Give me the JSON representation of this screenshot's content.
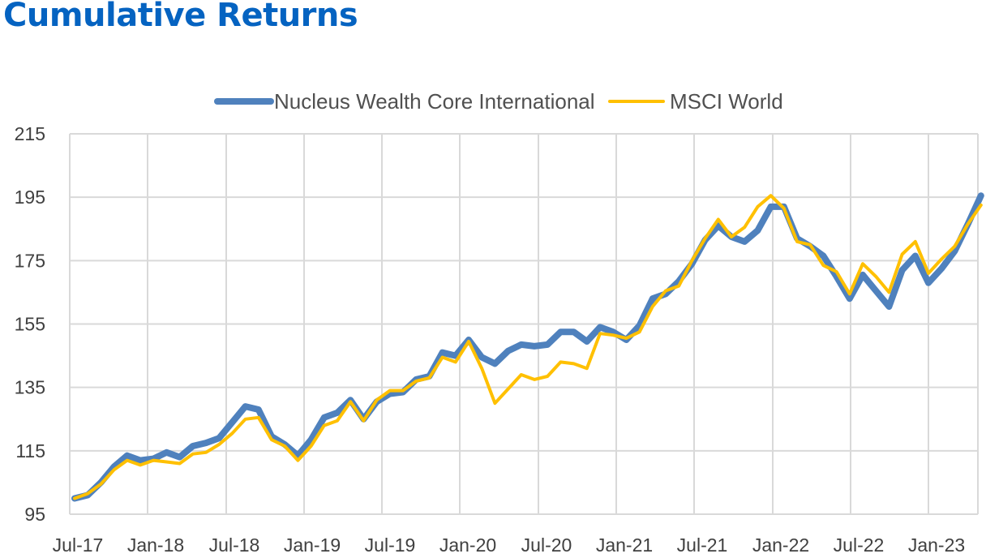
{
  "page": {
    "title": "Cumulative Returns"
  },
  "chart_data": {
    "type": "line",
    "title": "",
    "xlabel": "",
    "ylabel": "",
    "ylim": [
      95,
      215
    ],
    "yticks": [
      95,
      115,
      135,
      155,
      175,
      195,
      215
    ],
    "x_tick_labels": [
      "Jul-17",
      "Jan-18",
      "Jul-18",
      "Jan-19",
      "Jul-19",
      "Jan-20",
      "Jul-20",
      "Jan-21",
      "Jul-21",
      "Jan-22",
      "Jul-22",
      "Jan-23"
    ],
    "grid": true,
    "legend_position": "top-center",
    "series": [
      {
        "name": "Nucleus Wealth Core International",
        "color": "#4F81BD",
        "values": [
          100,
          101,
          105,
          110,
          113.5,
          112,
          112.5,
          114.5,
          113,
          116.5,
          117.5,
          119,
          124,
          129,
          128,
          119.5,
          117,
          113.5,
          118.5,
          125.5,
          127,
          131,
          125,
          130.5,
          133,
          133.5,
          137.5,
          138.5,
          146,
          145,
          150,
          144.5,
          142.5,
          146.5,
          148.5,
          148,
          148.5,
          152.5,
          152.5,
          149.5,
          154,
          152.5,
          150,
          154.5,
          163,
          164.5,
          168.5,
          174,
          181.5,
          186,
          182.5,
          181,
          184.5,
          192,
          192,
          182,
          179.5,
          176.5,
          170,
          163,
          170.5,
          165.5,
          160.5,
          172,
          176.5,
          168,
          172.5,
          178,
          186.5,
          195.5
        ]
      },
      {
        "name": "MSCI World",
        "color": "#FFC000",
        "values": [
          100,
          101.5,
          104.5,
          109,
          112,
          110.5,
          112,
          111.5,
          111,
          114,
          114.5,
          117,
          120.5,
          125,
          125.5,
          118.5,
          116.5,
          112,
          116.5,
          123,
          124.5,
          130.5,
          124.5,
          131,
          134,
          134,
          137,
          138,
          144.5,
          143,
          149.5,
          141,
          130,
          134.5,
          139,
          137.5,
          138.5,
          143,
          142.5,
          141,
          152,
          151.5,
          150.5,
          152.5,
          160.5,
          165.5,
          167,
          175,
          182,
          188,
          182.5,
          185.5,
          192,
          195.5,
          191.5,
          181,
          180,
          173.5,
          171.5,
          164.5,
          174,
          170,
          165,
          177,
          181,
          171,
          175.5,
          179.5,
          186.5,
          192.5
        ]
      }
    ]
  }
}
